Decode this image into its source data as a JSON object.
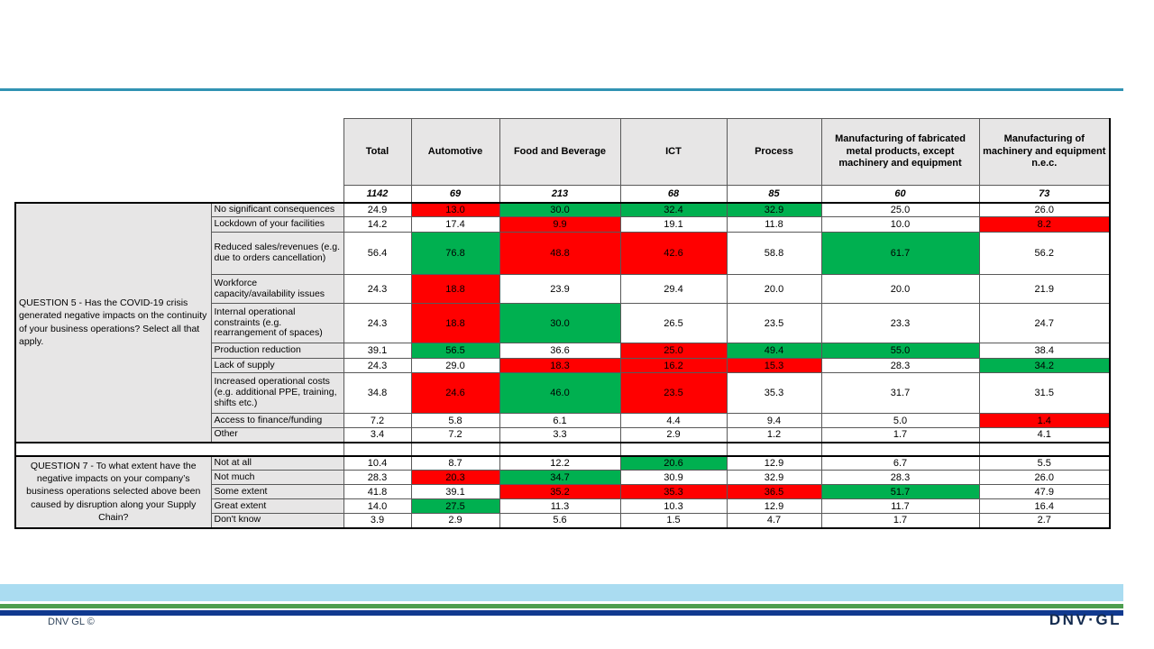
{
  "page": {
    "top_rule_color": "#3193b3",
    "footer": {
      "copyright": "DNV GL ©",
      "copyright_color": "#33475e",
      "logo": "DNV·GL",
      "logo_color": "#132a4e",
      "band_color": "#aadcf1",
      "green_stripe_color": "#4d9e4f",
      "navy_stripe_color": "#10398f"
    }
  },
  "colors": {
    "red": "#ff0000",
    "green": "#00b050",
    "header_fill": "#e7e6e6"
  },
  "table": {
    "columns": [
      {
        "label": "Total",
        "count": "1142"
      },
      {
        "label": "Automotive",
        "count": "69"
      },
      {
        "label": "Food and Beverage",
        "count": "213"
      },
      {
        "label": "ICT",
        "count": "68"
      },
      {
        "label": "Process",
        "count": "85"
      },
      {
        "label": "Manufacturing of fabricated metal products, except machinery and equipment",
        "count": "60"
      },
      {
        "label": "Manufacturing of machinery and equipment n.e.c.",
        "count": "73"
      }
    ],
    "sections": [
      {
        "question": "QUESTION 5 - Has the COVID-19 crisis generated negative impacts on the continuity of your business operations? Select all that apply.",
        "align": "left",
        "rows": [
          {
            "label": "No significant consequences",
            "cells": [
              {
                "v": "24.9"
              },
              {
                "v": "13.0",
                "h": "red"
              },
              {
                "v": "30.0",
                "h": "green"
              },
              {
                "v": "32.4",
                "h": "green"
              },
              {
                "v": "32.9",
                "h": "green"
              },
              {
                "v": "25.0"
              },
              {
                "v": "26.0"
              }
            ]
          },
          {
            "label": "Lockdown of your facilities",
            "cells": [
              {
                "v": "14.2"
              },
              {
                "v": "17.4"
              },
              {
                "v": "9.9",
                "h": "red"
              },
              {
                "v": "19.1"
              },
              {
                "v": "11.8"
              },
              {
                "v": "10.0"
              },
              {
                "v": "8.2",
                "h": "red"
              }
            ]
          },
          {
            "label": "Reduced sales/revenues (e.g. due to orders cancellation)",
            "cells": [
              {
                "v": "56.4"
              },
              {
                "v": "76.8",
                "h": "green"
              },
              {
                "v": "48.8",
                "h": "red"
              },
              {
                "v": "42.6",
                "h": "red"
              },
              {
                "v": "58.8"
              },
              {
                "v": "61.7",
                "h": "green"
              },
              {
                "v": "56.2"
              }
            ]
          },
          {
            "label": "Workforce capacity/availability issues",
            "cells": [
              {
                "v": "24.3"
              },
              {
                "v": "18.8",
                "h": "red"
              },
              {
                "v": "23.9"
              },
              {
                "v": "29.4"
              },
              {
                "v": "20.0"
              },
              {
                "v": "20.0"
              },
              {
                "v": "21.9"
              }
            ]
          },
          {
            "label": "Internal operational constraints (e.g. rearrangement of spaces)",
            "cells": [
              {
                "v": "24.3"
              },
              {
                "v": "18.8",
                "h": "red"
              },
              {
                "v": "30.0",
                "h": "green"
              },
              {
                "v": "26.5"
              },
              {
                "v": "23.5"
              },
              {
                "v": "23.3"
              },
              {
                "v": "24.7"
              }
            ]
          },
          {
            "label": "Production reduction",
            "cells": [
              {
                "v": "39.1"
              },
              {
                "v": "56.5",
                "h": "green"
              },
              {
                "v": "36.6"
              },
              {
                "v": "25.0",
                "h": "red"
              },
              {
                "v": "49.4",
                "h": "green"
              },
              {
                "v": "55.0",
                "h": "green"
              },
              {
                "v": "38.4"
              }
            ]
          },
          {
            "label": "Lack of supply",
            "cells": [
              {
                "v": "24.3"
              },
              {
                "v": "29.0"
              },
              {
                "v": "18.3",
                "h": "red"
              },
              {
                "v": "16.2",
                "h": "red"
              },
              {
                "v": "15.3",
                "h": "red"
              },
              {
                "v": "28.3"
              },
              {
                "v": "34.2",
                "h": "green"
              }
            ]
          },
          {
            "label": "Increased operational costs (e.g. additional PPE, training, shifts etc.)",
            "cells": [
              {
                "v": "34.8"
              },
              {
                "v": "24.6",
                "h": "red"
              },
              {
                "v": "46.0",
                "h": "green"
              },
              {
                "v": "23.5",
                "h": "red"
              },
              {
                "v": "35.3"
              },
              {
                "v": "31.7"
              },
              {
                "v": "31.5"
              }
            ]
          },
          {
            "label": "Access to finance/funding",
            "cells": [
              {
                "v": "7.2"
              },
              {
                "v": "5.8"
              },
              {
                "v": "6.1"
              },
              {
                "v": "4.4"
              },
              {
                "v": "9.4"
              },
              {
                "v": "5.0"
              },
              {
                "v": "1.4",
                "h": "red"
              }
            ]
          },
          {
            "label": "Other",
            "cells": [
              {
                "v": "3.4"
              },
              {
                "v": "7.2"
              },
              {
                "v": "3.3"
              },
              {
                "v": "2.9"
              },
              {
                "v": "1.2"
              },
              {
                "v": "1.7"
              },
              {
                "v": "4.1"
              }
            ]
          }
        ]
      },
      {
        "question": "QUESTION 7 - To what extent have the negative impacts on your company’s business operations selected above been caused by disruption along your Supply Chain?",
        "align": "center",
        "rows": [
          {
            "label": "Not at all",
            "cells": [
              {
                "v": "10.4"
              },
              {
                "v": "8.7"
              },
              {
                "v": "12.2"
              },
              {
                "v": "20.6",
                "h": "green"
              },
              {
                "v": "12.9"
              },
              {
                "v": "6.7"
              },
              {
                "v": "5.5"
              }
            ]
          },
          {
            "label": "Not much",
            "cells": [
              {
                "v": "28.3"
              },
              {
                "v": "20.3",
                "h": "red"
              },
              {
                "v": "34.7",
                "h": "green"
              },
              {
                "v": "30.9"
              },
              {
                "v": "32.9"
              },
              {
                "v": "28.3"
              },
              {
                "v": "26.0"
              }
            ]
          },
          {
            "label": "Some extent",
            "cells": [
              {
                "v": "41.8"
              },
              {
                "v": "39.1"
              },
              {
                "v": "35.2",
                "h": "red"
              },
              {
                "v": "35.3",
                "h": "red"
              },
              {
                "v": "36.5",
                "h": "red"
              },
              {
                "v": "51.7",
                "h": "green"
              },
              {
                "v": "47.9"
              }
            ]
          },
          {
            "label": "Great extent",
            "cells": [
              {
                "v": "14.0"
              },
              {
                "v": "27.5",
                "h": "green"
              },
              {
                "v": "11.3"
              },
              {
                "v": "10.3"
              },
              {
                "v": "12.9"
              },
              {
                "v": "11.7"
              },
              {
                "v": "16.4"
              }
            ]
          },
          {
            "label": "Don't know",
            "cells": [
              {
                "v": "3.9"
              },
              {
                "v": "2.9"
              },
              {
                "v": "5.6"
              },
              {
                "v": "1.5"
              },
              {
                "v": "4.7"
              },
              {
                "v": "1.7"
              },
              {
                "v": "2.7"
              }
            ]
          }
        ]
      }
    ]
  }
}
